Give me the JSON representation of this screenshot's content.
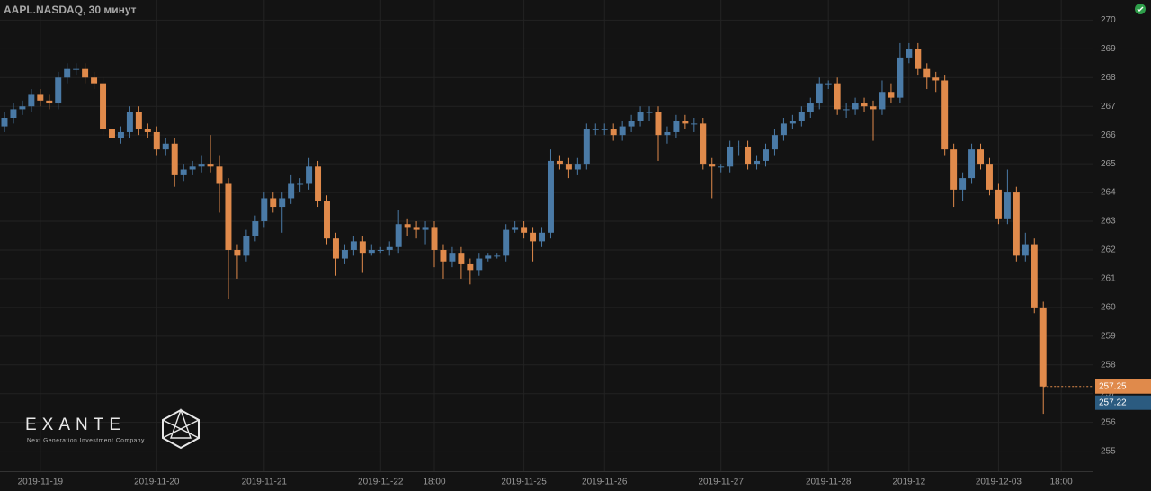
{
  "chart_data": {
    "type": "candlestick",
    "title": "AAPL.NASDAQ, 30 минут",
    "categories": [
      null,
      null,
      null,
      null,
      "2019-11-19",
      null,
      null,
      null,
      null,
      null,
      null,
      null,
      null,
      null,
      null,
      null,
      null,
      "2019-11-20",
      null,
      null,
      null,
      null,
      null,
      null,
      null,
      null,
      null,
      null,
      null,
      "2019-11-21",
      null,
      null,
      null,
      null,
      null,
      null,
      null,
      null,
      null,
      null,
      null,
      null,
      "2019-11-22",
      null,
      null,
      null,
      null,
      null,
      "18:00",
      null,
      null,
      null,
      null,
      null,
      null,
      null,
      null,
      null,
      "2019-11-25",
      null,
      null,
      null,
      null,
      null,
      null,
      null,
      null,
      "2019-11-26",
      null,
      null,
      null,
      null,
      null,
      null,
      null,
      null,
      null,
      null,
      null,
      null,
      "2019-11-27",
      null,
      null,
      null,
      null,
      null,
      null,
      null,
      null,
      null,
      null,
      null,
      "2019-11-28",
      null,
      null,
      null,
      null,
      null,
      null,
      null,
      null,
      "2019-12",
      null,
      null,
      null,
      null,
      null,
      null,
      null,
      null,
      null,
      "2019-12-03",
      null,
      null,
      null,
      null,
      null,
      null,
      "18:00",
      null,
      null,
      null
    ],
    "open": [
      266.3,
      266.6,
      266.9,
      267.0,
      267.4,
      267.2,
      267.1,
      268.0,
      268.3,
      268.3,
      268.0,
      267.8,
      266.2,
      265.9,
      266.1,
      266.8,
      266.2,
      266.1,
      265.5,
      265.7,
      264.6,
      264.8,
      264.9,
      265.0,
      264.9,
      264.3,
      262.0,
      261.8,
      262.5,
      263.0,
      263.8,
      263.5,
      263.8,
      264.3,
      264.3,
      264.9,
      263.7,
      262.4,
      261.7,
      262.0,
      262.3,
      261.9,
      262.0,
      262.0,
      262.1,
      262.9,
      262.8,
      262.7,
      262.8,
      262.0,
      261.6,
      261.9,
      261.5,
      261.3,
      261.7,
      261.8,
      261.8,
      262.7,
      262.8,
      262.6,
      262.3,
      262.6,
      265.1,
      265.0,
      264.8,
      265.0,
      266.2,
      266.2,
      266.2,
      266.0,
      266.3,
      266.5,
      266.8,
      266.8,
      266.0,
      266.1,
      266.5,
      266.4,
      266.4,
      265.0,
      264.9,
      264.9,
      265.6,
      265.6,
      265.0,
      265.1,
      265.5,
      266.0,
      266.4,
      266.5,
      266.8,
      267.1,
      267.8,
      267.8,
      266.9,
      266.9,
      267.1,
      267.0,
      266.9,
      267.5,
      267.3,
      268.7,
      269.0,
      268.3,
      268.0,
      267.9,
      265.5,
      264.1,
      264.5,
      265.5,
      265.0,
      264.1,
      263.1,
      264.0,
      261.8,
      262.2,
      260.0,
      null,
      null,
      null,
      null,
      null
    ],
    "high": [
      266.8,
      267.1,
      267.2,
      267.6,
      267.6,
      267.4,
      268.2,
      268.5,
      268.5,
      268.5,
      268.2,
      268.0,
      266.4,
      266.3,
      267.0,
      267.0,
      266.4,
      266.3,
      265.9,
      265.9,
      265.0,
      265.1,
      265.3,
      266.0,
      265.3,
      264.5,
      262.2,
      262.7,
      263.2,
      264.0,
      264.0,
      264.0,
      264.6,
      264.5,
      265.2,
      265.1,
      263.9,
      262.6,
      262.2,
      262.5,
      262.5,
      262.2,
      262.1,
      262.3,
      263.4,
      263.1,
      263.0,
      263.0,
      263.0,
      262.2,
      262.1,
      262.1,
      261.7,
      261.9,
      261.9,
      261.9,
      262.9,
      263.0,
      263.0,
      262.8,
      262.8,
      265.5,
      265.3,
      265.2,
      265.2,
      266.4,
      266.4,
      266.4,
      266.4,
      266.5,
      266.7,
      267.0,
      267.0,
      267.0,
      266.3,
      266.7,
      266.7,
      266.6,
      266.6,
      265.2,
      265.0,
      265.8,
      265.8,
      265.8,
      265.3,
      265.7,
      266.2,
      266.6,
      266.7,
      267.0,
      267.3,
      268.0,
      267.9,
      268.0,
      267.1,
      267.3,
      267.3,
      267.2,
      267.9,
      267.8,
      269.2,
      269.2,
      269.2,
      268.5,
      268.2,
      268.1,
      265.7,
      264.7,
      265.7,
      265.7,
      265.2,
      264.3,
      264.8,
      264.2,
      262.6,
      262.4,
      260.2,
      null,
      null,
      null,
      null,
      null
    ],
    "low": [
      266.1,
      266.4,
      266.7,
      266.8,
      267.0,
      266.9,
      266.9,
      267.8,
      268.1,
      267.8,
      267.6,
      266.0,
      265.4,
      265.7,
      265.9,
      266.0,
      265.9,
      265.3,
      265.3,
      264.2,
      264.4,
      264.6,
      264.7,
      264.7,
      263.3,
      260.3,
      261.0,
      261.6,
      262.3,
      262.8,
      263.3,
      262.6,
      263.6,
      264.0,
      264.1,
      263.5,
      262.2,
      261.1,
      261.5,
      261.8,
      261.2,
      261.8,
      261.9,
      261.8,
      261.9,
      262.5,
      262.4,
      262.2,
      261.4,
      261.0,
      261.4,
      261.0,
      260.8,
      261.1,
      261.6,
      261.7,
      261.6,
      262.6,
      262.4,
      261.6,
      262.1,
      262.4,
      264.8,
      264.5,
      264.6,
      264.8,
      266.0,
      266.0,
      265.8,
      265.8,
      266.1,
      266.3,
      266.5,
      265.1,
      265.7,
      265.9,
      266.2,
      266.1,
      264.8,
      263.8,
      264.7,
      264.7,
      265.3,
      264.8,
      264.8,
      264.9,
      265.3,
      265.8,
      266.2,
      266.3,
      266.6,
      266.9,
      267.6,
      266.7,
      266.6,
      266.7,
      266.8,
      265.8,
      266.7,
      267.1,
      267.1,
      268.5,
      268.1,
      267.6,
      267.5,
      265.3,
      263.5,
      263.7,
      264.3,
      264.8,
      263.9,
      262.9,
      262.9,
      261.6,
      261.6,
      259.8,
      256.3,
      null,
      null,
      null,
      null,
      null
    ],
    "close": [
      266.6,
      266.9,
      267.0,
      267.4,
      267.2,
      267.1,
      268.0,
      268.3,
      268.3,
      268.0,
      267.8,
      266.2,
      265.9,
      266.1,
      266.8,
      266.2,
      266.1,
      265.5,
      265.7,
      264.6,
      264.8,
      264.9,
      265.0,
      264.9,
      264.3,
      262.0,
      261.8,
      262.5,
      263.0,
      263.8,
      263.5,
      263.8,
      264.3,
      264.3,
      264.9,
      263.7,
      262.4,
      261.7,
      262.0,
      262.3,
      261.9,
      262.0,
      262.0,
      262.1,
      262.9,
      262.8,
      262.7,
      262.8,
      262.0,
      261.6,
      261.9,
      261.5,
      261.3,
      261.7,
      261.8,
      261.8,
      262.7,
      262.8,
      262.6,
      262.3,
      262.6,
      265.1,
      265.0,
      264.8,
      265.0,
      266.2,
      266.2,
      266.2,
      266.0,
      266.3,
      266.5,
      266.8,
      266.8,
      266.0,
      266.1,
      266.5,
      266.4,
      266.4,
      265.0,
      264.9,
      264.9,
      265.6,
      265.6,
      265.0,
      265.1,
      265.5,
      266.0,
      266.4,
      266.5,
      266.8,
      267.1,
      267.8,
      267.8,
      266.9,
      266.9,
      267.1,
      267.0,
      266.9,
      267.5,
      267.3,
      268.7,
      269.0,
      268.3,
      268.0,
      267.9,
      265.5,
      264.1,
      264.5,
      265.5,
      265.0,
      264.1,
      263.1,
      264.0,
      261.8,
      262.2,
      260.0,
      257.25,
      null,
      null,
      null,
      null,
      null
    ],
    "up_color": "#4a7aa6",
    "down_color": "#e08a4b",
    "ylim": [
      254.3,
      270.7
    ],
    "yticks": [
      255,
      256,
      257,
      258,
      259,
      260,
      261,
      262,
      263,
      264,
      265,
      266,
      267,
      268,
      269,
      270
    ],
    "grid": true,
    "price_markers": [
      {
        "value": 257.25,
        "color": "#e08a4b"
      },
      {
        "value": 257.22,
        "color": "#2b5b80"
      }
    ]
  },
  "branding": {
    "name": "EXANTE",
    "tagline": "Next Generation Investment Company"
  }
}
